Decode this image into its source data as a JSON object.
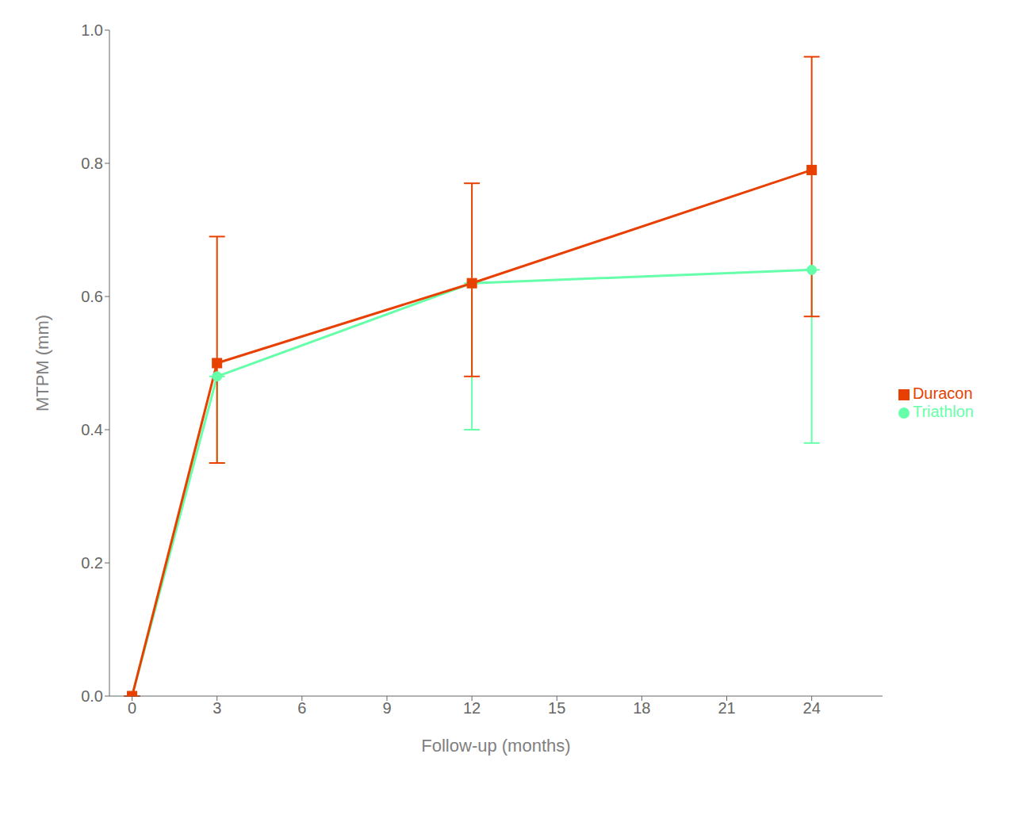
{
  "chart_data": {
    "type": "line",
    "x": [
      0,
      3,
      12,
      24
    ],
    "series": [
      {
        "name": "Triathlon",
        "color": "#66ffaa",
        "marker": "circle",
        "values": [
          0.0,
          0.48,
          0.62,
          0.64
        ],
        "yerr_lower": [
          0.0,
          0.13,
          0.22,
          0.26
        ],
        "yerr_upper": [
          0.0,
          0.0,
          0.0,
          0.0
        ]
      },
      {
        "name": "Duracon",
        "color": "#e84000",
        "marker": "square",
        "values": [
          0.0,
          0.5,
          0.62,
          0.79
        ],
        "yerr_lower": [
          0.0,
          0.15,
          0.14,
          0.22
        ],
        "yerr_upper": [
          0.0,
          0.19,
          0.15,
          0.17
        ]
      }
    ],
    "xlabel": "Follow-up (months)",
    "ylabel": "MTPM (mm)",
    "xlim": [
      -0.8,
      26.5
    ],
    "ylim": [
      0.0,
      1.0
    ],
    "xticks": [
      0,
      3,
      6,
      9,
      12,
      15,
      18,
      21,
      24
    ],
    "yticks": [
      {
        "value": 0.0,
        "label": "0.0"
      },
      0.2,
      0.4,
      0.6,
      0.8,
      {
        "value": 1.0,
        "label": "1.0"
      }
    ],
    "grid": false,
    "legend": "right"
  }
}
